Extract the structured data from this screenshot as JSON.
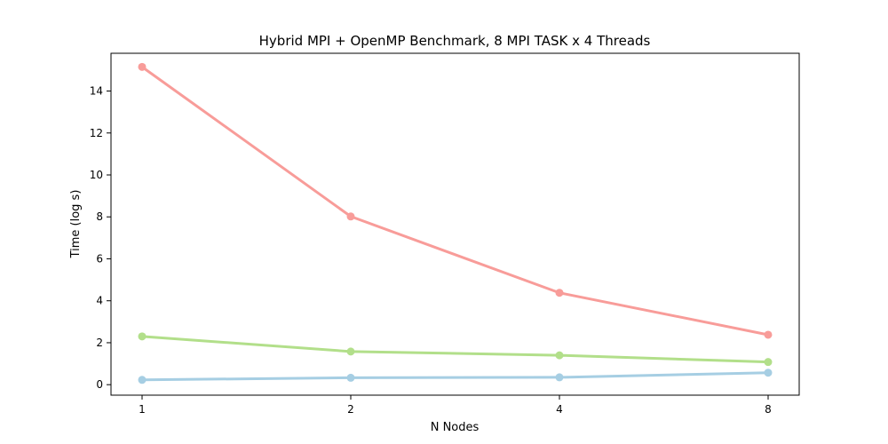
{
  "chart_data": {
    "type": "line",
    "title": "Hybrid MPI + OpenMP Benchmark, 8 MPI TASK x 4 Threads",
    "xlabel": "N Nodes",
    "ylabel": "Time (log s)",
    "categories": [
      "1",
      "2",
      "4",
      "8"
    ],
    "ylim": [
      -0.5,
      15.8
    ],
    "yticks": [
      0,
      2,
      4,
      6,
      8,
      10,
      12,
      14
    ],
    "grid": false,
    "series": [
      {
        "color": "#f89c99",
        "values": [
          15.15,
          8.02,
          4.38,
          2.38
        ]
      },
      {
        "color": "#b2df8a",
        "values": [
          2.3,
          1.58,
          1.4,
          1.08
        ]
      },
      {
        "color": "#a6cee3",
        "values": [
          0.23,
          0.33,
          0.35,
          0.57
        ]
      }
    ]
  }
}
